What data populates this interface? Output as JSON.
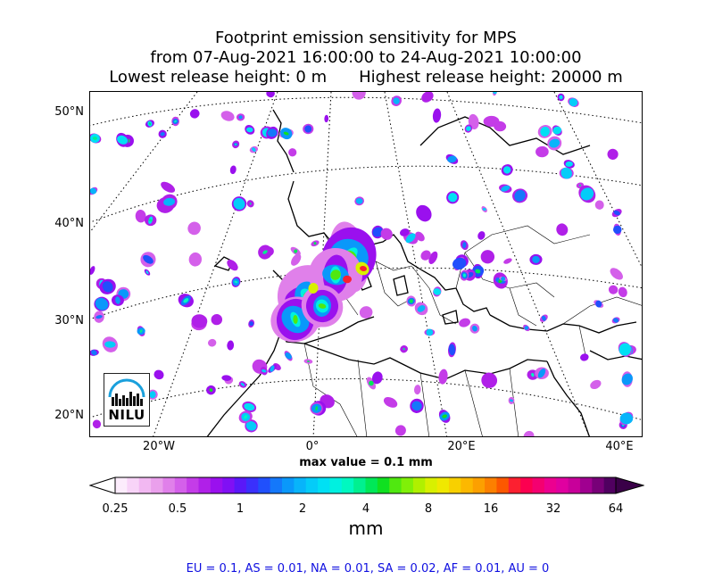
{
  "title": {
    "line1": "Footprint emission sensitivity for MPS",
    "line2": "from 07-Aug-2021 16:00:00 to 24-Aug-2021 10:00:00",
    "line3_left": "Lowest release height: 0 m",
    "line3_right": "Highest release height: 20000 m"
  },
  "map": {
    "lat_labels": [
      "50°N",
      "40°N",
      "30°N",
      "20°N"
    ],
    "lon_labels": [
      "20°W",
      "0°",
      "20°E",
      "40°E"
    ],
    "max_value_text": "max value = 0.1 mm",
    "logo_text": "NILU"
  },
  "colorbar": {
    "tick_labels": [
      "0.25",
      "0.5",
      "1",
      "2",
      "4",
      "8",
      "16",
      "32",
      "64"
    ],
    "unit": "mm",
    "colors": [
      "#fcecfc",
      "#f8d4f8",
      "#f2b8f2",
      "#eaa0ec",
      "#e080ea",
      "#d460ea",
      "#c43ce8",
      "#b020e8",
      "#9a10ee",
      "#8010f4",
      "#5a18f8",
      "#3a30fc",
      "#2050fc",
      "#1478fa",
      "#0a98fa",
      "#08b4fa",
      "#04ccf8",
      "#00e0f4",
      "#00f0e0",
      "#00f8c0",
      "#00f090",
      "#00e858",
      "#10e020",
      "#50e810",
      "#80f008",
      "#b0f000",
      "#d8f000",
      "#f0e800",
      "#f8d000",
      "#fcb800",
      "#fca000",
      "#fc8000",
      "#fc5800",
      "#fc2030",
      "#fc0050",
      "#f40070",
      "#ec0090",
      "#e000a0",
      "#c8009a",
      "#a00090",
      "#780078",
      "#500060"
    ],
    "under_color": "#ffffff",
    "over_color": "#3a0048"
  },
  "regions_text": "EU = 0.1,  AS = 0.01,  NA = 0.01,  SA = 0.02,  AF = 0.01,  AU = 0"
}
